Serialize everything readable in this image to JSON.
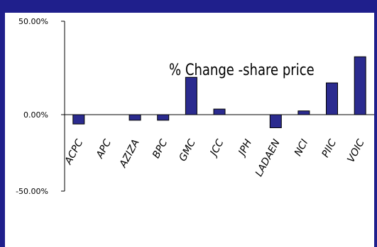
{
  "chart_data": {
    "type": "bar",
    "title": "% Change -share price",
    "categories": [
      "ACPC",
      "APC",
      "AZIZA",
      "BPC",
      "GMC",
      "JCC",
      "JPH",
      "LADAEN",
      "NCI",
      "PIIC",
      "VOIC"
    ],
    "values": [
      -5,
      0,
      -3,
      -3,
      20,
      3,
      0,
      -7,
      2,
      17,
      31
    ],
    "ylim": [
      -50,
      50
    ],
    "yticks": [
      "-50.00%",
      "0.00%",
      "50.00%"
    ],
    "xlabel": "",
    "ylabel": "",
    "legend": "none",
    "grid": false,
    "colors": {
      "bar": "#2b2b8f",
      "frame": "#1f1f8c"
    }
  }
}
